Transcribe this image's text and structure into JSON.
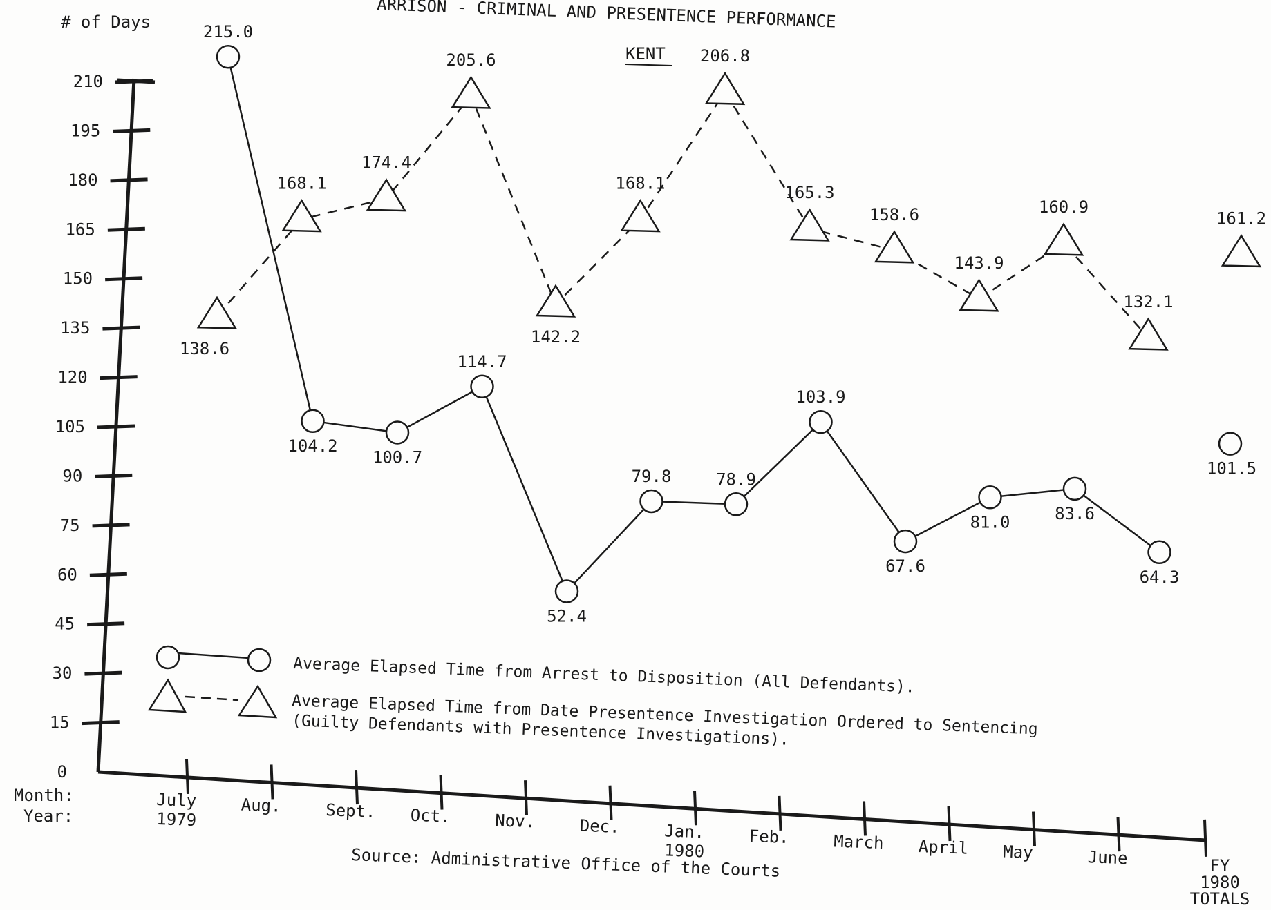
{
  "header": {
    "title_fragment": "ARRISON - CRIMINAL AND PRESENTENCE PERFORMANCE",
    "subtitle": "KENT"
  },
  "y_axis": {
    "label": "# of Days",
    "ticks": [
      "210",
      "195",
      "180",
      "165",
      "150",
      "135",
      "120",
      "105",
      "90",
      "75",
      "60",
      "45",
      "30",
      "15",
      "0"
    ]
  },
  "x_axis": {
    "row_labels": [
      "Month:",
      "Year:"
    ],
    "categories": [
      {
        "label": "July",
        "year": "1979"
      },
      {
        "label": "Aug.",
        "year": ""
      },
      {
        "label": "Sept.",
        "year": ""
      },
      {
        "label": "Oct.",
        "year": ""
      },
      {
        "label": "Nov.",
        "year": ""
      },
      {
        "label": "Dec.",
        "year": ""
      },
      {
        "label": "Jan.",
        "year": "1980"
      },
      {
        "label": "Feb.",
        "year": ""
      },
      {
        "label": "March",
        "year": ""
      },
      {
        "label": "April",
        "year": ""
      },
      {
        "label": "May",
        "year": ""
      },
      {
        "label": "June",
        "year": ""
      }
    ],
    "totals_label": [
      "FY",
      "1980",
      "TOTALS"
    ]
  },
  "legend": {
    "circle_text": "Average Elapsed Time from Arrest to Disposition (All Defendants).",
    "triangle_text_line1": "Average Elapsed Time from Date Presentence Investigation Ordered to Sentencing",
    "triangle_text_line2": "(Guilty Defendants with Presentence Investigations)."
  },
  "source": "Source:  Administrative Office of the Courts",
  "chart_data": {
    "type": "line",
    "title": "KENT",
    "ylabel": "# of Days",
    "ylim": [
      0,
      210
    ],
    "categories": [
      "July 1979",
      "Aug.",
      "Sept.",
      "Oct.",
      "Nov.",
      "Dec.",
      "Jan. 1980",
      "Feb.",
      "March",
      "April",
      "May",
      "June"
    ],
    "series": [
      {
        "name": "Average Elapsed Time from Arrest to Disposition (All Defendants).",
        "marker": "circle",
        "style": "solid",
        "values": [
          215.0,
          104.2,
          100.7,
          114.7,
          52.4,
          79.8,
          78.9,
          103.9,
          67.6,
          81.0,
          83.6,
          64.3
        ],
        "labels": [
          "215.0",
          "104.2",
          "100.7",
          "114.7",
          "52.4",
          "79.8",
          "78.9",
          "103.9",
          "67.6",
          "81.0",
          "83.6",
          "64.3"
        ],
        "fy_total": 101.5,
        "fy_total_label": "101.5"
      },
      {
        "name": "Average Elapsed Time from Date Presentence Investigation Ordered to Sentencing (Guilty Defendants with Presentence Investigations).",
        "marker": "triangle",
        "style": "dashed",
        "values": [
          138.6,
          168.1,
          174.4,
          205.6,
          142.2,
          168.1,
          206.8,
          165.3,
          158.6,
          143.9,
          160.9,
          132.1
        ],
        "labels": [
          "138.6",
          "168.1",
          "174.4",
          "205.6",
          "142.2",
          "168.1",
          "206.8",
          "165.3",
          "158.6",
          "143.9",
          "160.9",
          "132.1"
        ],
        "fy_total": 161.2,
        "fy_total_label": "161.2"
      }
    ]
  }
}
